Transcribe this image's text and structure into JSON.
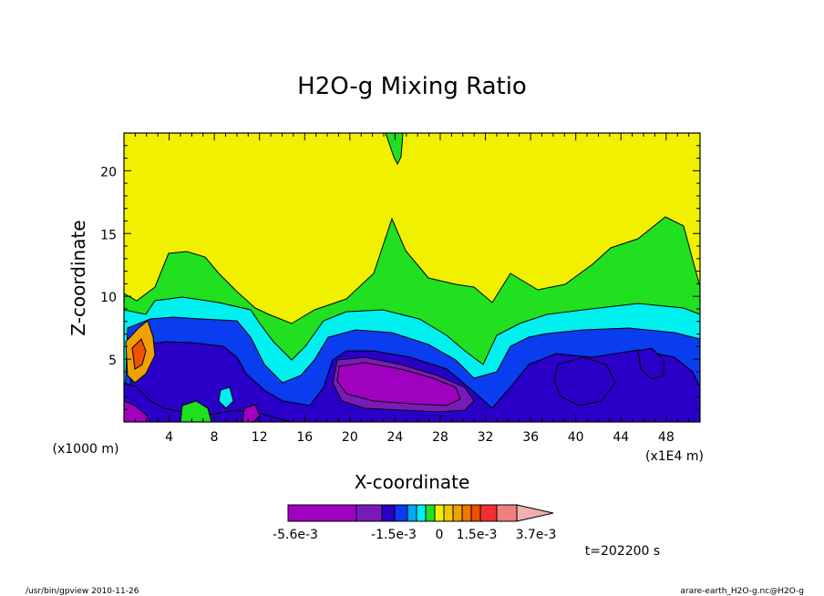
{
  "chart_data": {
    "type": "heatmap",
    "title": "H2O-g Mixing Ratio",
    "xlabel": "X-coordinate",
    "ylabel": "Z-coordinate",
    "x_unit": "(x1E4 m)",
    "y_unit": "(x1000 m)",
    "x_ticks": [
      "4",
      "8",
      "12",
      "16",
      "20",
      "24",
      "28",
      "32",
      "36",
      "40",
      "44",
      "48"
    ],
    "y_ticks": [
      "5",
      "10",
      "15",
      "20"
    ],
    "xlim": [
      0,
      51
    ],
    "ylim": [
      0,
      23
    ],
    "time_label": "t=202200 s",
    "colorbar": {
      "labels": [
        "-5.6e-3",
        "-1.5e-3",
        "0",
        "1.5e-3",
        "3.7e-3"
      ],
      "colors": [
        "#a000c0",
        "#7a1ab8",
        "#2a00c8",
        "#0a3cf0",
        "#00aaf0",
        "#00f0f0",
        "#20e020",
        "#f0f000",
        "#f0c800",
        "#f0a000",
        "#f07800",
        "#f05000",
        "#f03030",
        "#f08080",
        "#f0b0b0"
      ]
    }
  },
  "footer": {
    "left": "/usr/bin/gpview  2010-11-26",
    "right": "arare-earth_H2O-g.nc@H2O-g"
  }
}
